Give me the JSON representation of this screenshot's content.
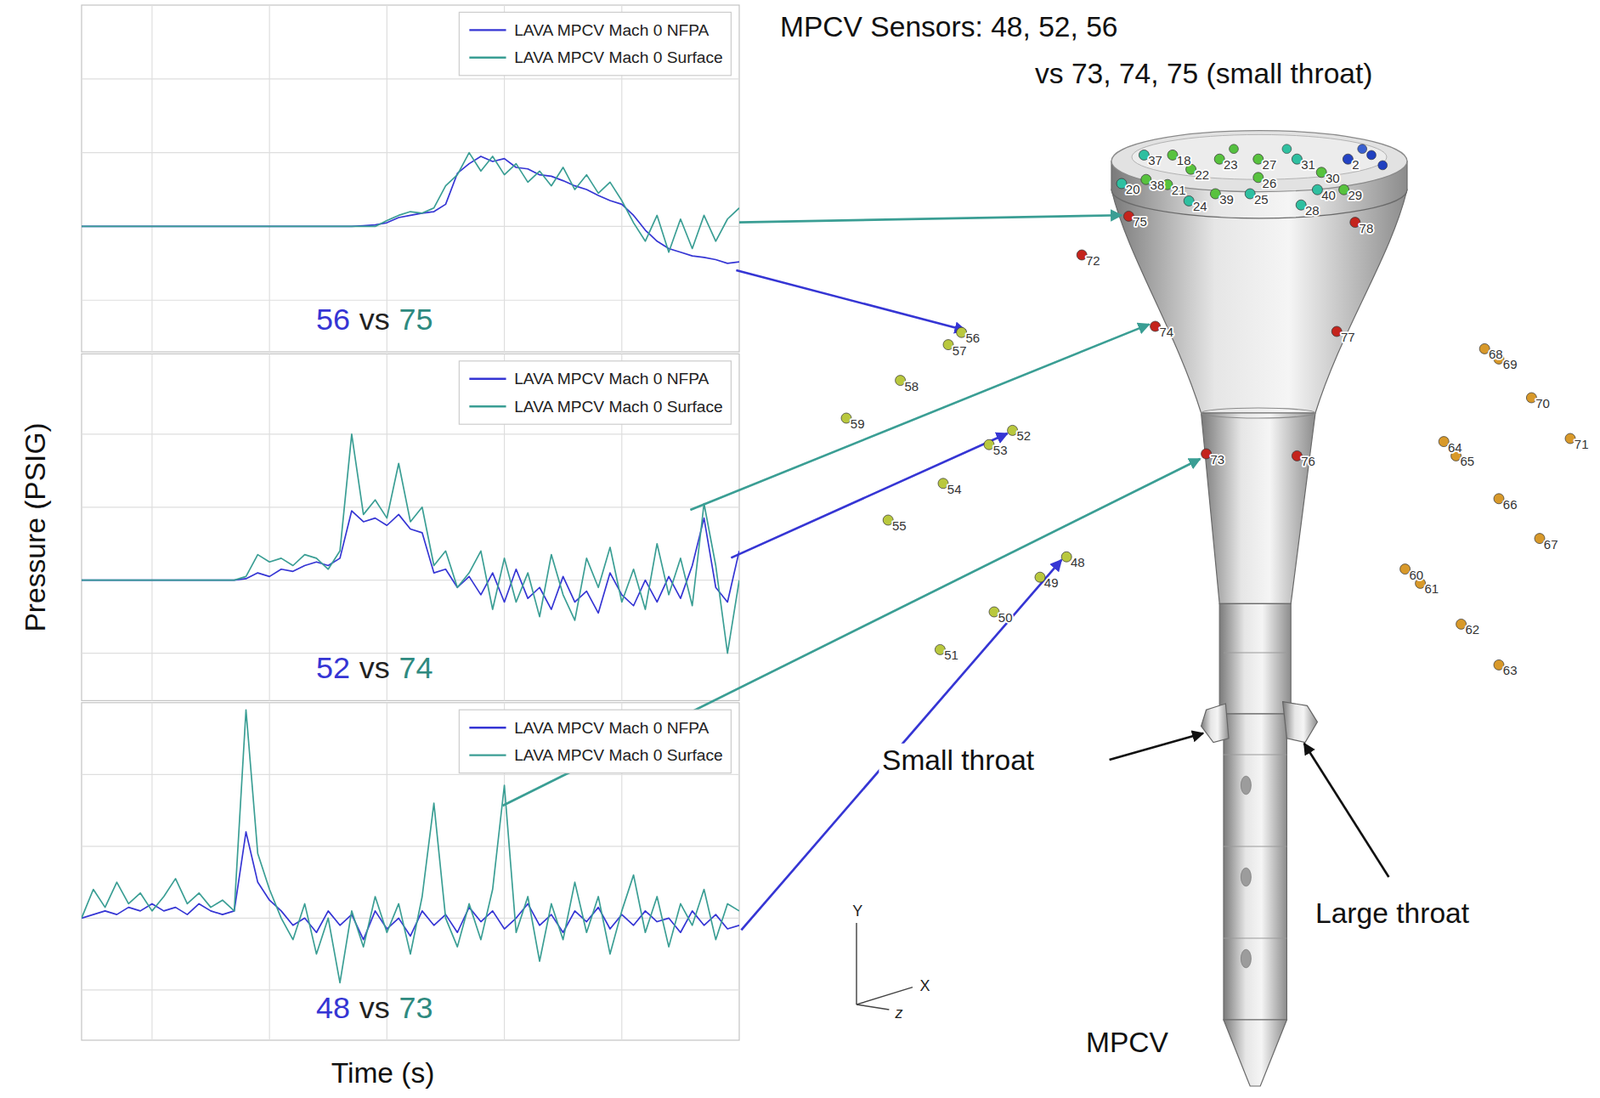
{
  "chart_data": [
    {
      "type": "line",
      "x": [
        0.4,
        0.5,
        0.6,
        0.7,
        0.8,
        0.9,
        1.0,
        1.1,
        1.2,
        1.3,
        1.4,
        1.5,
        1.6,
        1.7,
        1.8,
        1.9,
        2.0,
        2.1,
        2.2,
        2.3,
        2.4,
        2.5,
        2.6,
        2.7,
        2.8,
        2.9,
        3.0,
        3.1,
        3.2,
        3.3,
        3.4,
        3.5,
        3.6,
        3.7,
        3.8,
        3.9,
        4.0,
        4.1,
        4.2,
        4.3,
        4.4,
        4.5,
        4.6,
        4.7,
        4.8,
        4.9,
        5.0,
        5.1,
        5.2,
        5.3,
        5.4,
        5.5,
        5.6,
        5.7,
        5.8,
        5.9,
        6.0
      ],
      "xlim": [
        0.4,
        6
      ],
      "xticks": [
        1,
        2,
        3,
        4,
        5
      ],
      "ylim": [
        -1.7,
        3
      ],
      "yticks": [
        -1,
        0,
        1,
        2
      ],
      "grid": true,
      "tick_labels": false,
      "legend": "upper right",
      "series": [
        {
          "name": "LAVA MPCV Mach 0 NFPA",
          "color": "#3535d4",
          "values": [
            0,
            0,
            0,
            0,
            0,
            0,
            0,
            0,
            0,
            0,
            0,
            0,
            0,
            0,
            0,
            0,
            0,
            0,
            0,
            0,
            0,
            0,
            0,
            0,
            0.01,
            0.02,
            0.05,
            0.12,
            0.15,
            0.18,
            0.2,
            0.3,
            0.72,
            0.85,
            0.95,
            0.88,
            0.92,
            0.8,
            0.78,
            0.7,
            0.68,
            0.62,
            0.55,
            0.5,
            0.42,
            0.35,
            0.3,
            0.15,
            -0.05,
            -0.2,
            -0.3,
            -0.35,
            -0.4,
            -0.42,
            -0.45,
            -0.5,
            -0.48
          ]
        },
        {
          "name": "LAVA MPCV Mach 0 Surface",
          "color": "#3a9e94",
          "values": [
            0,
            0,
            0,
            0,
            0,
            0,
            0,
            0,
            0,
            0,
            0,
            0,
            0,
            0,
            0,
            0,
            0,
            0,
            0,
            0,
            0,
            0,
            0,
            0,
            0,
            0,
            0.08,
            0.15,
            0.2,
            0.18,
            0.25,
            0.55,
            0.7,
            1.0,
            0.75,
            0.95,
            0.7,
            0.85,
            0.6,
            0.75,
            0.55,
            0.8,
            0.5,
            0.7,
            0.45,
            0.6,
            0.35,
            0.05,
            -0.2,
            0.15,
            -0.35,
            0.1,
            -0.3,
            0.15,
            -0.2,
            0.1,
            0.25
          ]
        }
      ],
      "annotations": [
        {
          "text": "56",
          "color": "#3535d4"
        },
        {
          "text": "vs",
          "color": "#222222"
        },
        {
          "text": "75",
          "color": "#2e8a80"
        }
      ]
    },
    {
      "type": "line",
      "x": [
        0.4,
        0.5,
        0.6,
        0.7,
        0.8,
        0.9,
        1.0,
        1.1,
        1.2,
        1.3,
        1.4,
        1.5,
        1.6,
        1.7,
        1.8,
        1.9,
        2.0,
        2.1,
        2.2,
        2.3,
        2.4,
        2.5,
        2.6,
        2.7,
        2.8,
        2.9,
        3.0,
        3.1,
        3.2,
        3.3,
        3.4,
        3.5,
        3.6,
        3.7,
        3.8,
        3.9,
        4.0,
        4.1,
        4.2,
        4.3,
        4.4,
        4.5,
        4.6,
        4.7,
        4.8,
        4.9,
        5.0,
        5.1,
        5.2,
        5.3,
        5.4,
        5.5,
        5.6,
        5.7,
        5.8,
        5.9,
        6.0
      ],
      "xlim": [
        0.4,
        6
      ],
      "xticks": [
        1,
        2,
        3,
        4,
        5
      ],
      "ylim": [
        -1.65,
        3.1
      ],
      "yticks": [
        -1,
        0,
        1,
        2
      ],
      "grid": true,
      "tick_labels": false,
      "legend": "upper right",
      "ylabel": "Pressure (PSIG)",
      "series": [
        {
          "name": "LAVA MPCV Mach 0 NFPA",
          "color": "#3535d4",
          "values": [
            0,
            0,
            0,
            0,
            0,
            0,
            0,
            0,
            0,
            0,
            0,
            0,
            0,
            0,
            0.02,
            0.1,
            0.05,
            0.15,
            0.12,
            0.2,
            0.25,
            0.2,
            0.3,
            0.95,
            0.8,
            0.85,
            0.75,
            0.9,
            0.7,
            0.65,
            0.1,
            0.15,
            -0.1,
            0.05,
            -0.2,
            0.1,
            -0.3,
            0.15,
            -0.25,
            -0.1,
            -0.4,
            0.05,
            -0.3,
            -0.15,
            -0.45,
            0.1,
            -0.2,
            -0.35,
            0,
            -0.3,
            0.05,
            -0.25,
            0.2,
            0.85,
            -0.1,
            -0.3,
            0.4
          ]
        },
        {
          "name": "LAVA MPCV Mach 0 Surface",
          "color": "#3a9e94",
          "values": [
            0,
            0,
            0,
            0,
            0,
            0,
            0,
            0,
            0,
            0,
            0,
            0,
            0,
            0,
            0.05,
            0.35,
            0.25,
            0.3,
            0.2,
            0.35,
            0.3,
            0.15,
            0.4,
            2.0,
            0.9,
            1.1,
            0.85,
            1.6,
            0.8,
            1.0,
            0.2,
            0.4,
            -0.1,
            0.1,
            0.4,
            -0.4,
            0.3,
            -0.3,
            0.1,
            -0.5,
            0.35,
            -0.2,
            -0.55,
            0.3,
            -0.1,
            0.45,
            -0.3,
            0.15,
            -0.4,
            0.5,
            -0.2,
            0.3,
            -0.35,
            1.05,
            0.2,
            -1.0,
            0
          ]
        }
      ],
      "annotations": [
        {
          "text": "52",
          "color": "#3535d4"
        },
        {
          "text": "vs",
          "color": "#222222"
        },
        {
          "text": "74",
          "color": "#2e8a80"
        }
      ]
    },
    {
      "type": "line",
      "x": [
        0.4,
        0.5,
        0.6,
        0.7,
        0.8,
        0.9,
        1.0,
        1.1,
        1.2,
        1.3,
        1.4,
        1.5,
        1.6,
        1.7,
        1.8,
        1.9,
        2.0,
        2.1,
        2.2,
        2.3,
        2.4,
        2.5,
        2.6,
        2.7,
        2.8,
        2.9,
        3.0,
        3.1,
        3.2,
        3.3,
        3.4,
        3.5,
        3.6,
        3.7,
        3.8,
        3.9,
        4.0,
        4.1,
        4.2,
        4.3,
        4.4,
        4.5,
        4.6,
        4.7,
        4.8,
        4.9,
        5.0,
        5.1,
        5.2,
        5.3,
        5.4,
        5.5,
        5.6,
        5.7,
        5.8,
        5.9,
        6.0
      ],
      "xlim": [
        0.4,
        6
      ],
      "xticks": [
        1,
        2,
        3,
        4,
        5
      ],
      "ylim": [
        -1.7,
        3
      ],
      "yticks": [
        -1,
        0,
        1,
        2
      ],
      "grid": true,
      "tick_labels": false,
      "legend": "upper right",
      "xlabel": "Time (s)",
      "series": [
        {
          "name": "LAVA MPCV Mach 0 NFPA",
          "color": "#3535d4",
          "values": [
            0,
            0.05,
            0.1,
            0.05,
            0.15,
            0.1,
            0.2,
            0.1,
            0.15,
            0.05,
            0.2,
            0.1,
            0.05,
            0.1,
            1.2,
            0.5,
            0.25,
            0.1,
            -0.1,
            0,
            -0.2,
            0.1,
            -0.1,
            0.05,
            -0.3,
            0.1,
            -0.15,
            0,
            -0.25,
            0.1,
            -0.1,
            0.05,
            -0.2,
            0.15,
            -0.05,
            0.1,
            -0.15,
            0,
            0.2,
            -0.1,
            0.05,
            -0.2,
            0.1,
            -0.05,
            0.15,
            -0.15,
            0.05,
            -0.1,
            0.1,
            -0.05,
            0,
            -0.2,
            0.1,
            -0.1,
            0.05,
            -0.15,
            -0.1
          ]
        },
        {
          "name": "LAVA MPCV Mach 0 Surface",
          "color": "#3a9e94",
          "values": [
            0,
            0.4,
            0.15,
            0.5,
            0.2,
            0.35,
            0.1,
            0.3,
            0.55,
            0.2,
            0.35,
            0.15,
            0.25,
            0.1,
            2.9,
            0.9,
            0.4,
            0,
            -0.3,
            0.2,
            -0.5,
            0,
            -0.9,
            0.1,
            -0.4,
            0.3,
            -0.2,
            0.2,
            -0.5,
            0.3,
            1.6,
            0,
            -0.4,
            0.2,
            -0.3,
            0.4,
            1.85,
            -0.2,
            0.3,
            -0.6,
            0.2,
            -0.3,
            0.5,
            -0.2,
            0.3,
            -0.5,
            0.1,
            0.6,
            -0.2,
            0.3,
            -0.4,
            0.2,
            -0.1,
            0.4,
            -0.3,
            0.2,
            0.1
          ]
        }
      ],
      "annotations": [
        {
          "text": "48",
          "color": "#3535d4"
        },
        {
          "text": "vs",
          "color": "#222222"
        },
        {
          "text": "73",
          "color": "#2e8a80"
        }
      ]
    }
  ],
  "diagram": {
    "title": [
      "MPCV Sensors: 48, 52, 56",
      "vs 73, 74, 75 (small throat)"
    ],
    "vehicle_label": "MPCV",
    "throat_labels": [
      "Small throat",
      "Large throat"
    ],
    "axes": [
      "Y",
      "X",
      "z"
    ],
    "sensors": [
      {
        "label": "75",
        "color": "red"
      },
      {
        "label": "78",
        "color": "red"
      },
      {
        "label": "72",
        "color": "red"
      },
      {
        "label": "74",
        "color": "red"
      },
      {
        "label": "77",
        "color": "red"
      },
      {
        "label": "73",
        "color": "red"
      },
      {
        "label": "76",
        "color": "red"
      },
      {
        "label": "56",
        "color": "yellow-green"
      },
      {
        "label": "57",
        "color": "yellow-green"
      },
      {
        "label": "58",
        "color": "yellow-green"
      },
      {
        "label": "59",
        "color": "yellow-green"
      },
      {
        "label": "52",
        "color": "yellow-green"
      },
      {
        "label": "53",
        "color": "yellow-green"
      },
      {
        "label": "54",
        "color": "yellow-green"
      },
      {
        "label": "55",
        "color": "yellow-green"
      },
      {
        "label": "48",
        "color": "yellow-green"
      },
      {
        "label": "49",
        "color": "yellow-green"
      },
      {
        "label": "50",
        "color": "yellow-green"
      },
      {
        "label": "51",
        "color": "yellow-green"
      },
      {
        "label": "68",
        "color": "orange"
      },
      {
        "label": "69",
        "color": "orange"
      },
      {
        "label": "70",
        "color": "orange"
      },
      {
        "label": "71",
        "color": "orange"
      },
      {
        "label": "64",
        "color": "orange"
      },
      {
        "label": "65",
        "color": "orange"
      },
      {
        "label": "66",
        "color": "orange"
      },
      {
        "label": "67",
        "color": "orange"
      },
      {
        "label": "60",
        "color": "orange"
      },
      {
        "label": "61",
        "color": "orange"
      },
      {
        "label": "62",
        "color": "orange"
      },
      {
        "label": "63",
        "color": "orange"
      },
      {
        "label": "37",
        "color": "cyan"
      },
      {
        "label": "18",
        "color": "green"
      },
      {
        "label": "23",
        "color": "green"
      },
      {
        "label": "27",
        "color": "green"
      },
      {
        "label": "31",
        "color": "cyan"
      },
      {
        "label": "2",
        "color": "blue"
      },
      {
        "label": "20",
        "color": "cyan"
      },
      {
        "label": "38",
        "color": "green"
      },
      {
        "label": "21",
        "color": "green"
      },
      {
        "label": "22",
        "color": "green"
      },
      {
        "label": "26",
        "color": "green"
      },
      {
        "label": "30",
        "color": "green"
      },
      {
        "label": "24",
        "color": "cyan"
      },
      {
        "label": "39",
        "color": "green"
      },
      {
        "label": "25",
        "color": "cyan"
      },
      {
        "label": "28",
        "color": "cyan"
      },
      {
        "label": "40",
        "color": "cyan"
      },
      {
        "label": "29",
        "color": "green"
      }
    ]
  }
}
